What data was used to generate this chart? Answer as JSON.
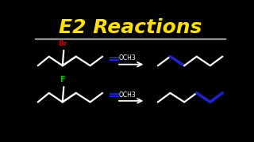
{
  "title": "E2 Reactions",
  "title_color": "#FFE000",
  "title_fontsize": 18,
  "background_color": "#000000",
  "separator_color": "#FFFFFF",
  "label_Br": "Br",
  "label_Br_color": "#CC0000",
  "label_F": "F",
  "label_F_color": "#00CC00",
  "label_OCH3": "OCH3",
  "label_OCH3_color": "#FFFFFF",
  "arrow_color": "#FFFFFF",
  "line_color": "#FFFFFF",
  "highlight_color": "#2222CC",
  "lw": 1.6
}
